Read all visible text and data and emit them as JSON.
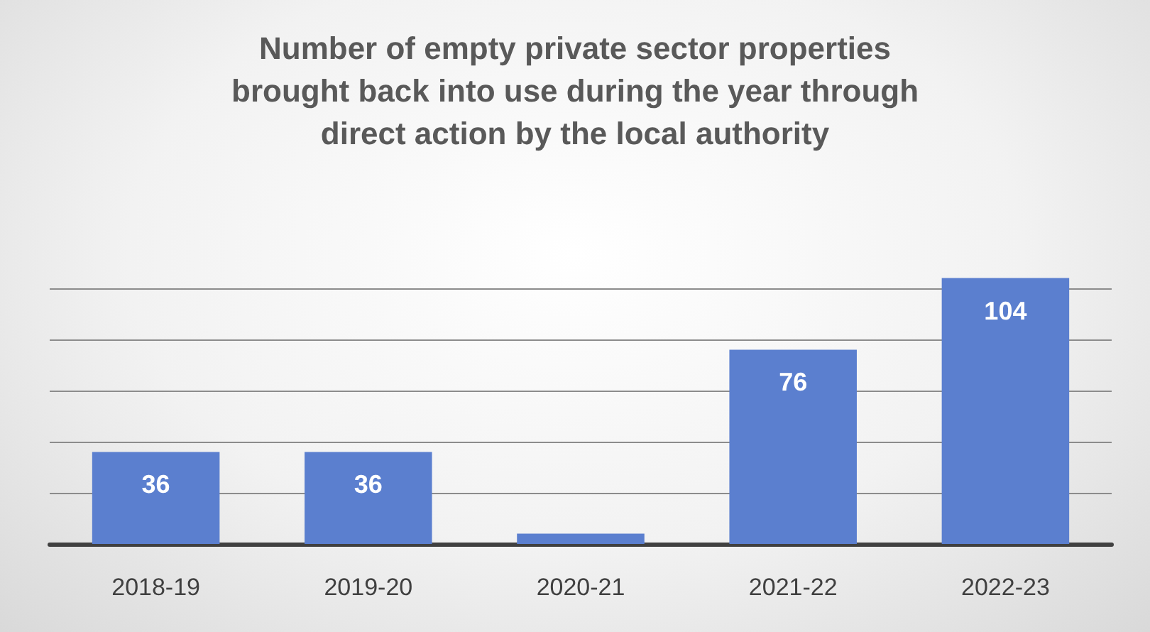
{
  "chart_data": {
    "type": "bar",
    "title": "Number of empty private sector properties\nbrought back into use during the year through\ndirect action by the local authority",
    "categories": [
      "2018-19",
      "2019-20",
      "2020-21",
      "2021-22",
      "2022-23"
    ],
    "values": [
      36,
      36,
      4,
      76,
      104
    ],
    "value_labels": [
      "36",
      "36",
      null,
      "76",
      "104"
    ],
    "color": "#5b7fcf",
    "yticks": [
      {
        "value": 0,
        "label": null
      },
      {
        "value": 20,
        "label": null
      },
      {
        "value": 40,
        "label": null
      },
      {
        "value": 60,
        "label": null
      },
      {
        "value": 80,
        "label": null
      },
      {
        "value": 100,
        "label": null
      }
    ],
    "grid": "y",
    "tick_labels": "x"
  }
}
